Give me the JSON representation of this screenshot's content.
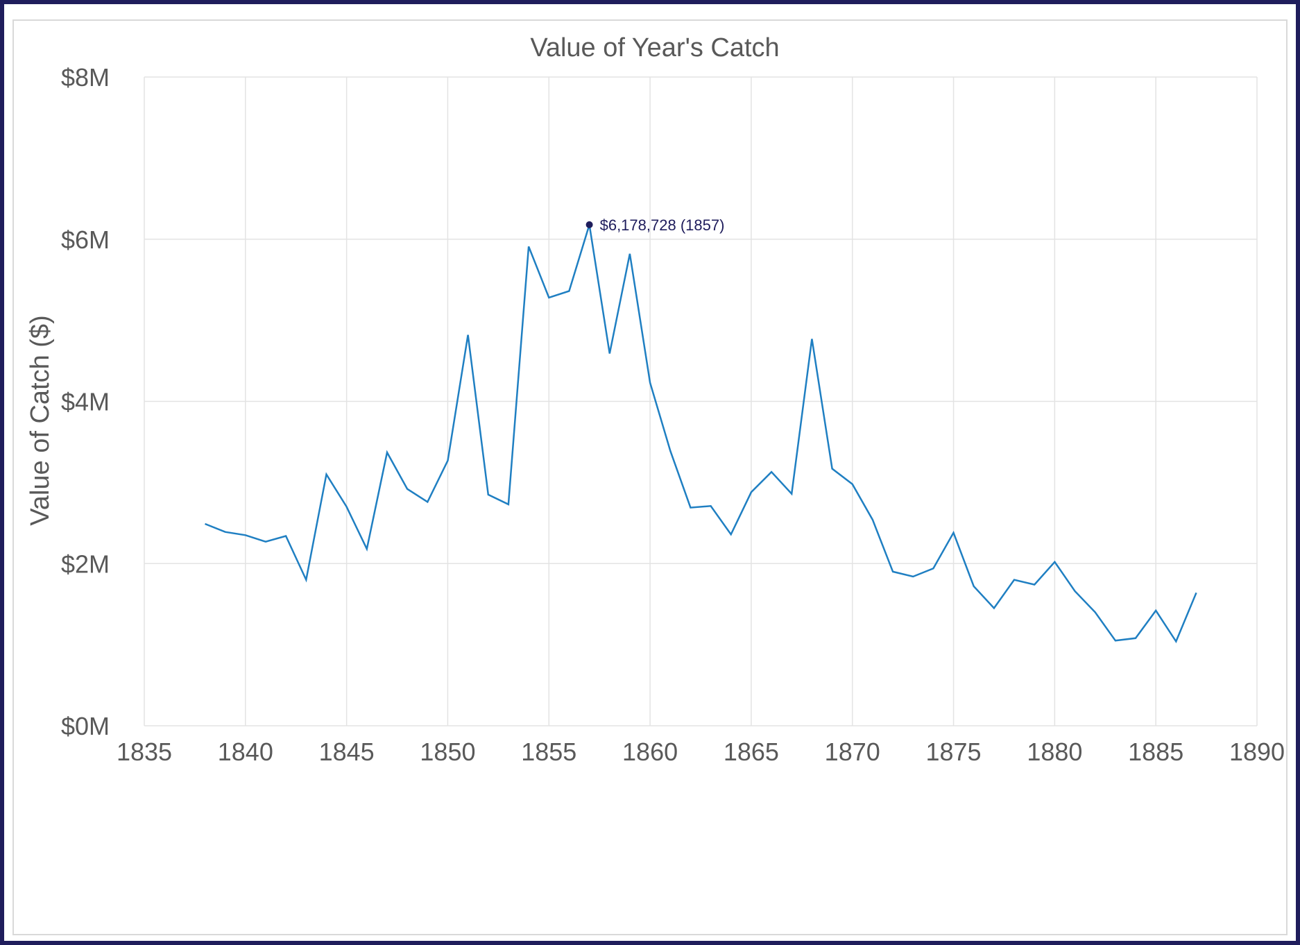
{
  "chart_data": {
    "type": "line",
    "title": "Value of Year's Catch",
    "xlabel": "",
    "ylabel": "Value of Catch ($)",
    "xlim": [
      1835,
      1890
    ],
    "ylim": [
      0,
      8000000
    ],
    "x_ticks": [
      "1835",
      "1840",
      "1845",
      "1850",
      "1855",
      "1860",
      "1865",
      "1870",
      "1875",
      "1880",
      "1885",
      "1890"
    ],
    "y_ticks": [
      "$0M",
      "$2M",
      "$4M",
      "$6M",
      "$8M"
    ],
    "grid": true,
    "legend": "none",
    "line_color": "#1f7fc2",
    "x": [
      1838,
      1839,
      1840,
      1841,
      1842,
      1843,
      1844,
      1845,
      1846,
      1847,
      1848,
      1849,
      1850,
      1851,
      1852,
      1853,
      1854,
      1855,
      1856,
      1857,
      1858,
      1859,
      1860,
      1861,
      1862,
      1863,
      1864,
      1865,
      1866,
      1867,
      1868,
      1869,
      1870,
      1871,
      1872,
      1873,
      1874,
      1875,
      1876,
      1877,
      1878,
      1879,
      1880,
      1881,
      1882,
      1883,
      1884,
      1885,
      1886,
      1887
    ],
    "y": [
      2490000,
      2390000,
      2350000,
      2270000,
      2340000,
      1800000,
      3100000,
      2700000,
      2180000,
      3370000,
      2920000,
      2760000,
      3270000,
      4820000,
      2850000,
      2730000,
      5910000,
      5280000,
      5360000,
      6178728,
      4590000,
      5820000,
      4230000,
      3390000,
      2690000,
      2710000,
      2360000,
      2880000,
      3130000,
      2860000,
      4770000,
      3170000,
      2980000,
      2540000,
      1900000,
      1840000,
      1940000,
      2380000,
      1720000,
      1450000,
      1800000,
      1740000,
      2020000,
      1660000,
      1400000,
      1050000,
      1080000,
      1420000,
      1040000,
      1640000
    ],
    "annotation": {
      "text": "$6,178,728 (1857)",
      "x": 1857,
      "y": 6178728
    }
  }
}
